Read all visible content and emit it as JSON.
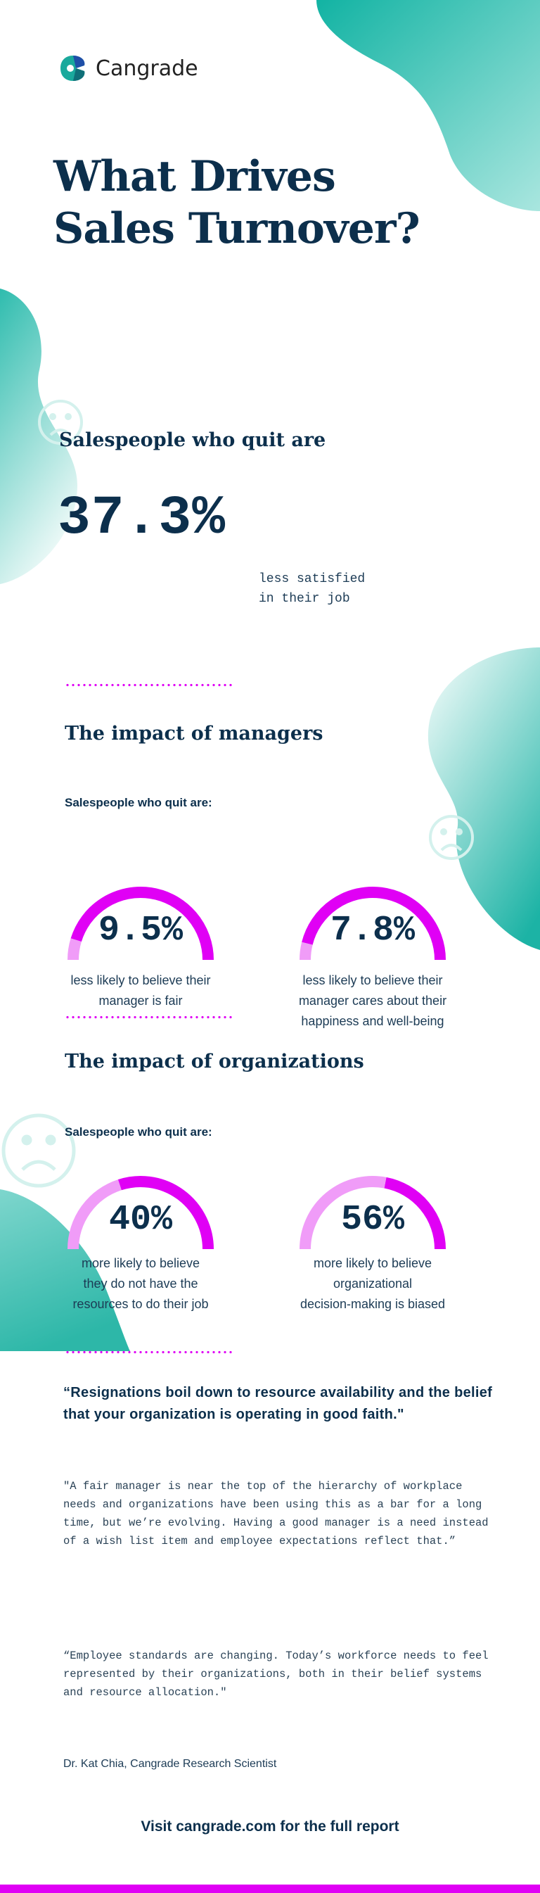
{
  "brand": {
    "name": "Cangrade"
  },
  "title": {
    "line1": "What Drives",
    "line2": "Sales Turnover?"
  },
  "intro": {
    "heading": "Salespeople who quit are",
    "stat": "37.3%",
    "caption_line1": "less satisfied",
    "caption_line2": "in their job"
  },
  "colors": {
    "navy": "#0c2f4c",
    "magenta": "#e000f5",
    "light_magenta": "#f09cf8",
    "teal": "#16b5a6"
  },
  "managers": {
    "heading": "The impact of managers",
    "subheading": "Salespeople who quit are:",
    "gauges": [
      {
        "value": 9.5,
        "label": "9.5%",
        "caption": [
          "less likely to believe their",
          "manager is fair"
        ]
      },
      {
        "value": 7.8,
        "label": "7.8%",
        "caption": [
          "less likely to believe their",
          "manager cares about their",
          "happiness and well-being"
        ]
      }
    ]
  },
  "organizations": {
    "heading": "The impact of organizations",
    "subheading": "Salespeople who quit are:",
    "gauges": [
      {
        "value": 40,
        "label": "40%",
        "caption": [
          "more likely to believe",
          "they do not have the",
          "resources to do their job"
        ]
      },
      {
        "value": 56,
        "label": "56%",
        "caption": [
          "more likely to believe",
          "organizational",
          "decision-making is biased"
        ]
      }
    ]
  },
  "quote": {
    "headline": "“Resignations boil down to resource availability and the belief that your organization is operating in good faith.\"",
    "para1": "\"A fair manager is near the top of the hierarchy of workplace needs and organizations have been using this as a bar for a long time, but we’re evolving. Having a good manager is a need instead of a wish list item and employee expectations reflect that.”",
    "para2": "“Employee standards are changing. Today’s workforce needs to feel represented by their organizations, both in their belief systems and resource allocation.\"",
    "attribution": "Dr. Kat Chia, Cangrade Research Scientist"
  },
  "footer": {
    "cta": "Visit cangrade.com for the full report"
  },
  "decor_icons": [
    "sad-face-icon",
    "sad-face-icon",
    "sad-face-icon"
  ]
}
